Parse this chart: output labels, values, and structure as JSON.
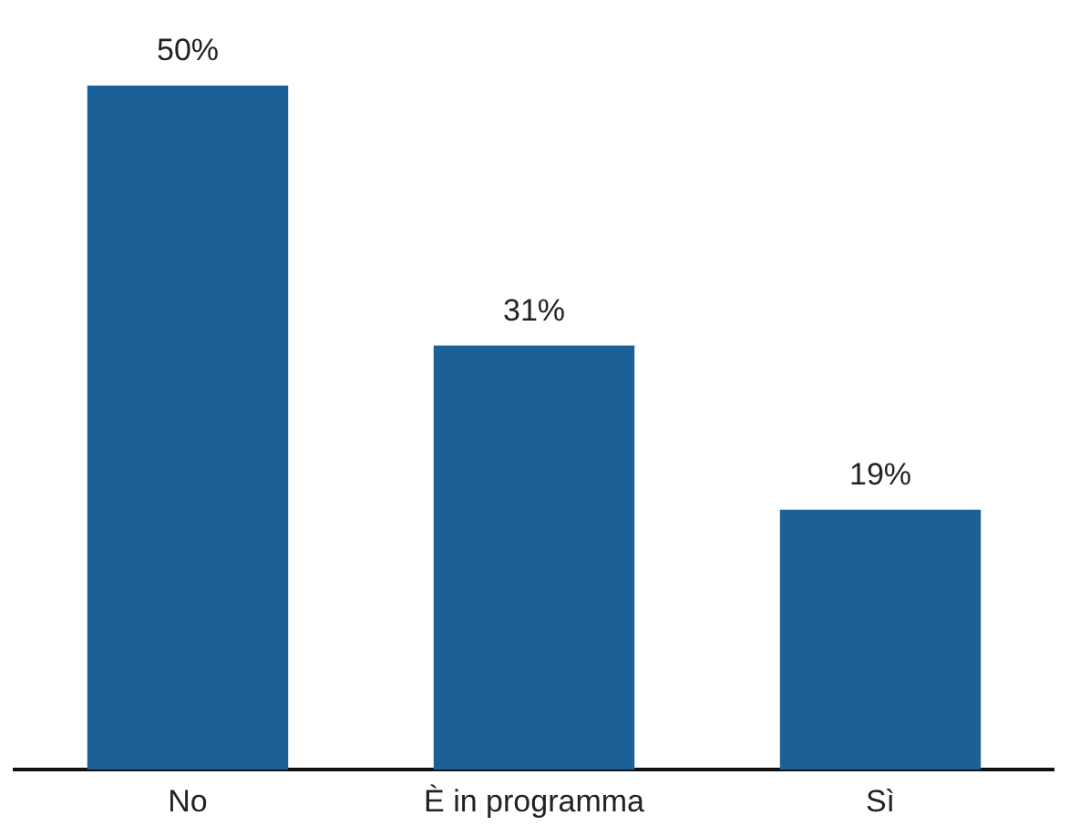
{
  "chart_data": {
    "type": "bar",
    "categories": [
      "No",
      "È in programma",
      "Sì"
    ],
    "values": [
      50,
      31,
      19
    ],
    "color": "#1b6096",
    "value_labels": [
      "50%",
      "31%",
      "19%"
    ],
    "tick_labels": "x",
    "grid": false,
    "legend": false
  }
}
